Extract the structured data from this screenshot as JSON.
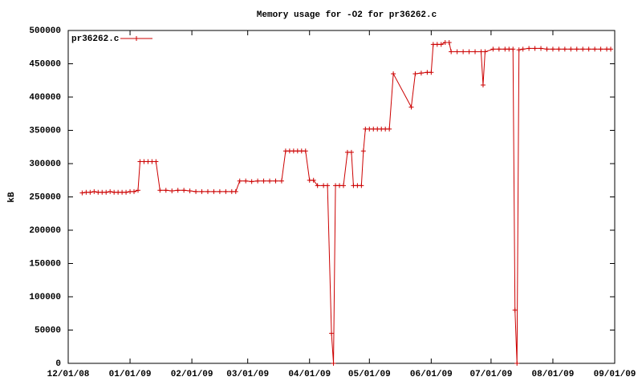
{
  "chart_data": {
    "type": "line",
    "title": "Memory usage for -O2 for pr36262.c",
    "y_label": "kB",
    "legend": "top-left",
    "x": [
      "2008-12-08",
      "2008-12-10",
      "2008-12-12",
      "2008-12-14",
      "2008-12-16",
      "2008-12-18",
      "2008-12-20",
      "2008-12-22",
      "2008-12-24",
      "2008-12-26",
      "2008-12-28",
      "2008-12-30",
      "2009-01-01",
      "2009-01-03",
      "2009-01-05",
      "2009-01-06",
      "2009-01-08",
      "2009-01-10",
      "2009-01-12",
      "2009-01-14",
      "2009-01-16",
      "2009-01-19",
      "2009-01-22",
      "2009-01-25",
      "2009-01-28",
      "2009-01-31",
      "2009-02-03",
      "2009-02-06",
      "2009-02-09",
      "2009-02-12",
      "2009-02-15",
      "2009-02-18",
      "2009-02-21",
      "2009-02-23",
      "2009-02-25",
      "2009-02-28",
      "2009-03-03",
      "2009-03-06",
      "2009-03-09",
      "2009-03-12",
      "2009-03-15",
      "2009-03-18",
      "2009-03-20",
      "2009-03-22",
      "2009-03-24",
      "2009-03-26",
      "2009-03-28",
      "2009-03-30",
      "2009-04-01",
      "2009-04-03",
      "2009-04-05",
      "2009-04-08",
      "2009-04-10",
      "2009-04-12",
      "2009-04-13",
      "2009-04-14",
      "2009-04-16",
      "2009-04-18",
      "2009-04-20",
      "2009-04-22",
      "2009-04-23",
      "2009-04-25",
      "2009-04-27",
      "2009-04-28",
      "2009-04-29",
      "2009-05-01",
      "2009-05-03",
      "2009-05-05",
      "2009-05-07",
      "2009-05-09",
      "2009-05-11",
      "2009-05-13",
      "2009-05-22",
      "2009-05-24",
      "2009-05-27",
      "2009-05-30",
      "2009-06-01",
      "2009-06-02",
      "2009-06-04",
      "2009-06-06",
      "2009-06-08",
      "2009-06-10",
      "2009-06-11",
      "2009-06-14",
      "2009-06-17",
      "2009-06-20",
      "2009-06-23",
      "2009-06-26",
      "2009-06-27",
      "2009-06-28",
      "2009-07-02",
      "2009-07-05",
      "2009-07-08",
      "2009-07-10",
      "2009-07-12",
      "2009-07-13",
      "2009-07-14",
      "2009-07-15",
      "2009-07-17",
      "2009-07-20",
      "2009-07-23",
      "2009-07-26",
      "2009-07-29",
      "2009-08-01",
      "2009-08-04",
      "2009-08-07",
      "2009-08-10",
      "2009-08-13",
      "2009-08-16",
      "2009-08-19",
      "2009-08-22",
      "2009-08-25",
      "2009-08-28",
      "2009-08-30"
    ],
    "series": [
      {
        "name": "pr36262.c",
        "color": "#cc0000",
        "values": [
          256000,
          257000,
          257000,
          258000,
          257000,
          257000,
          257000,
          258000,
          257000,
          257000,
          257000,
          257000,
          258000,
          258000,
          260000,
          303000,
          303000,
          303000,
          303000,
          303000,
          260000,
          260000,
          259000,
          260000,
          260000,
          259000,
          258000,
          258000,
          258000,
          258000,
          258000,
          258000,
          258000,
          258000,
          274000,
          274000,
          273000,
          274000,
          274000,
          274000,
          274000,
          274000,
          319000,
          319000,
          319000,
          319000,
          319000,
          319000,
          275000,
          275000,
          267000,
          267000,
          267000,
          45000,
          0,
          267000,
          267000,
          267000,
          317000,
          317000,
          267000,
          267000,
          267000,
          319000,
          352000,
          352000,
          352000,
          352000,
          352000,
          352000,
          352000,
          435000,
          385000,
          435000,
          436000,
          437000,
          437000,
          479000,
          479000,
          479000,
          482000,
          482000,
          468000,
          468000,
          468000,
          468000,
          468000,
          468000,
          418000,
          468000,
          472000,
          472000,
          472000,
          472000,
          472000,
          80000,
          0,
          471000,
          472000,
          473000,
          473000,
          473000,
          472000,
          472000,
          472000,
          472000,
          472000,
          472000,
          472000,
          472000,
          472000,
          472000,
          472000,
          472000
        ]
      }
    ],
    "xlim": [
      "2008-12-01",
      "2009-09-01"
    ],
    "xticks": [
      {
        "value": "2008-12-01",
        "label": "12/01/08"
      },
      {
        "value": "2009-01-01",
        "label": "01/01/09"
      },
      {
        "value": "2009-02-01",
        "label": "02/01/09"
      },
      {
        "value": "2009-03-01",
        "label": "03/01/09"
      },
      {
        "value": "2009-04-01",
        "label": "04/01/09"
      },
      {
        "value": "2009-05-01",
        "label": "05/01/09"
      },
      {
        "value": "2009-06-01",
        "label": "06/01/09"
      },
      {
        "value": "2009-07-01",
        "label": "07/01/09"
      },
      {
        "value": "2009-08-01",
        "label": "08/01/09"
      },
      {
        "value": "2009-09-01",
        "label": "09/01/09"
      }
    ],
    "ylim": [
      0,
      500000
    ],
    "yticks": [
      0,
      50000,
      100000,
      150000,
      200000,
      250000,
      300000,
      350000,
      400000,
      450000,
      500000
    ]
  }
}
